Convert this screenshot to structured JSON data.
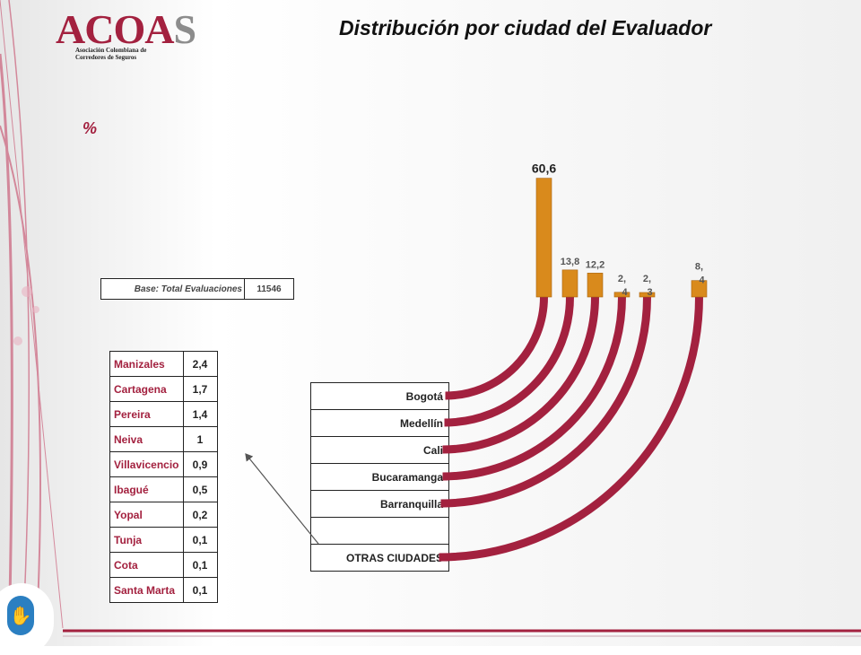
{
  "logo": {
    "name_main": "ACOA",
    "name_tail": "S",
    "subtitle_line1": "Asociación Colombiana de",
    "subtitle_line2": "Corredores de Seguros"
  },
  "title": "Distribución por ciudad del Evaluador",
  "unit_label": "%",
  "base": {
    "label": "Base: Total Evaluaciones",
    "value": "11546"
  },
  "other_cities": [
    {
      "city": "Manizales",
      "value": "2,4"
    },
    {
      "city": "Cartagena",
      "value": "1,7"
    },
    {
      "city": "Pereira",
      "value": "1,4"
    },
    {
      "city": "Neiva",
      "value": "1"
    },
    {
      "city": "Villavicencio",
      "value": "0,9"
    },
    {
      "city": "Ibagué",
      "value": "0,5"
    },
    {
      "city": "Yopal",
      "value": "0,2"
    },
    {
      "city": "Tunja",
      "value": "0,1"
    },
    {
      "city": "Cota",
      "value": "0,1"
    },
    {
      "city": "Santa Marta",
      "value": "0,1"
    }
  ],
  "chart_data": {
    "type": "bar",
    "categories": [
      "Bogotá",
      "Medellín",
      "Cali",
      "Bucaramanga",
      "Barranquilla",
      "",
      "OTRAS CIUDADES"
    ],
    "values": [
      60.6,
      13.8,
      12.2,
      2.4,
      2.3,
      null,
      8.4
    ],
    "data_labels": [
      "60,6",
      "13,8",
      "12,2",
      "2,\n4",
      "2,\n3",
      "",
      "8,\n4"
    ],
    "ylim": [
      0,
      65
    ],
    "colors": {
      "bar": "#d98a1c",
      "arc": "#a3213f",
      "accent": "#a3213f"
    }
  }
}
